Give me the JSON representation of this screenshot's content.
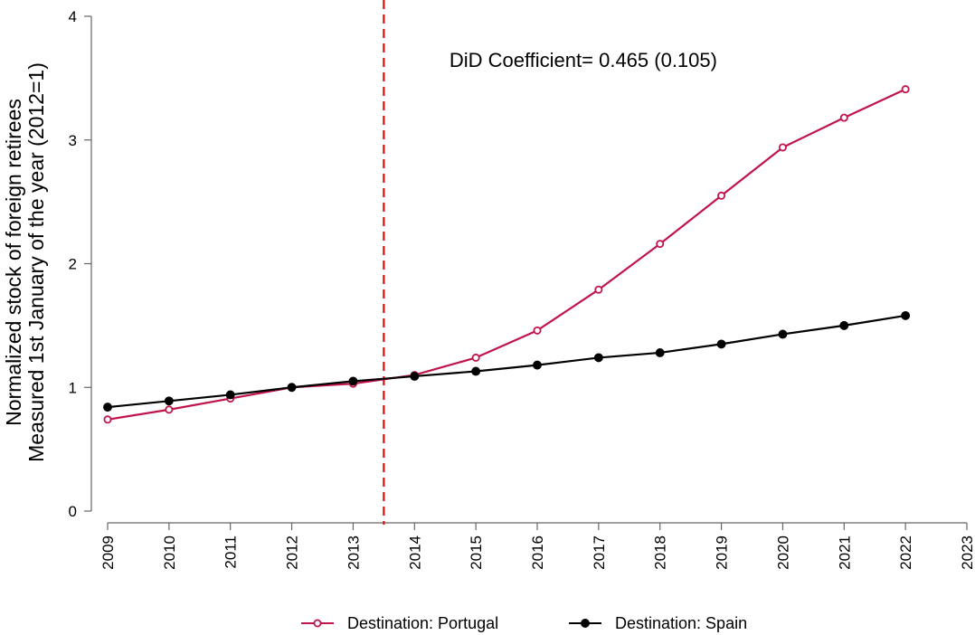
{
  "chart_data": {
    "type": "line",
    "title": "",
    "xlabel": "",
    "ylabel_line1": "Normalized stock of foreign retirees",
    "ylabel_line2": "Measured 1st January of the year (2012=1)",
    "x_ticks": [
      "2009",
      "2010",
      "2011",
      "2012",
      "2013",
      "2014",
      "2015",
      "2016",
      "2017",
      "2018",
      "2019",
      "2020",
      "2021",
      "2022",
      "2023"
    ],
    "y_ticks": [
      "0",
      "1",
      "2",
      "3",
      "4"
    ],
    "xlim": [
      2009,
      2023
    ],
    "ylim": [
      0,
      4
    ],
    "grid": false,
    "x": [
      2009,
      2010,
      2011,
      2012,
      2013,
      2014,
      2015,
      2016,
      2017,
      2018,
      2019,
      2020,
      2021,
      2022
    ],
    "series": [
      {
        "name": "Destination: Portugal",
        "color": "#c0144a",
        "marker": "hollow-circle",
        "values": [
          0.74,
          0.82,
          0.91,
          1.0,
          1.03,
          1.1,
          1.24,
          1.46,
          1.79,
          2.16,
          2.55,
          2.94,
          3.18,
          3.41
        ]
      },
      {
        "name": "Destination: Spain",
        "color": "#000000",
        "marker": "filled-circle",
        "values": [
          0.84,
          0.89,
          0.94,
          1.0,
          1.05,
          1.09,
          1.13,
          1.18,
          1.24,
          1.28,
          1.35,
          1.43,
          1.5,
          1.58
        ]
      }
    ],
    "vline": {
      "x": 2013.5,
      "color": "#e01010",
      "style": "dashed"
    },
    "annotation": {
      "text": "DiD Coefficient= 0.465 (0.105)",
      "x": 2016.75,
      "y": 3.65
    },
    "legend_position": "bottom"
  }
}
